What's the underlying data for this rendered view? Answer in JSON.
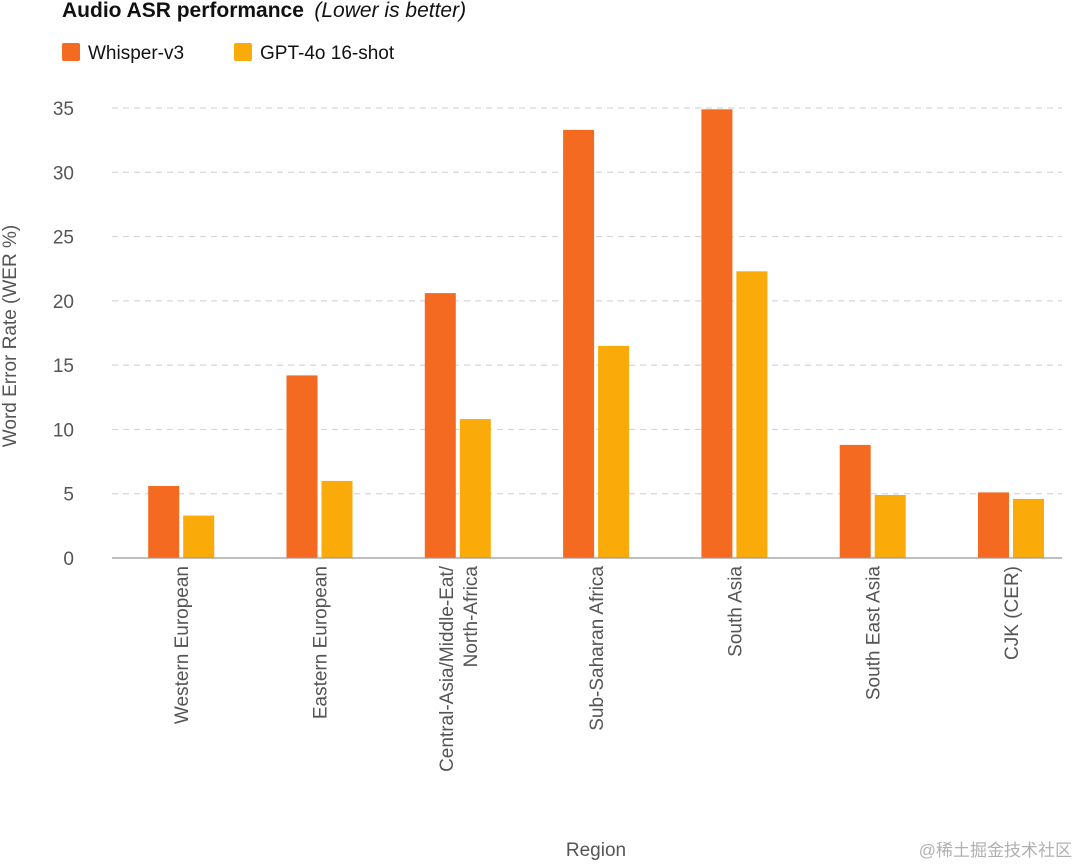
{
  "header": {
    "title": "Audio ASR performance",
    "subtitle": "(Lower is better)"
  },
  "legend": {
    "placement": "top-left"
  },
  "colors": {
    "whisper": "#F46A21",
    "gpt4o": "#FAAB09"
  },
  "watermark": "@稀土掘金技术社区",
  "chart_data": {
    "type": "bar",
    "title": "Audio ASR performance (Lower is better)",
    "xlabel": "Region",
    "ylabel": "Word Error Rate (WER %)",
    "ylim": [
      0,
      35
    ],
    "yticks": [
      0,
      5,
      10,
      15,
      20,
      25,
      30,
      35
    ],
    "grid": true,
    "categories": [
      [
        "Western European"
      ],
      [
        "Eastern European"
      ],
      [
        "Central-Asia/Middle-Eat/",
        "North-Africa"
      ],
      [
        "Sub-Saharan Africa"
      ],
      [
        "South Asia"
      ],
      [
        "South East Asia"
      ],
      [
        "CJK (CER)"
      ]
    ],
    "series": [
      {
        "name": "Whisper-v3",
        "color": "#F46A21",
        "values": [
          5.6,
          14.2,
          20.6,
          33.3,
          34.9,
          8.8,
          5.1
        ]
      },
      {
        "name": "GPT-4o 16-shot",
        "color": "#FAAB09",
        "values": [
          3.3,
          6.0,
          10.8,
          16.5,
          22.3,
          4.9,
          4.6
        ]
      }
    ]
  }
}
